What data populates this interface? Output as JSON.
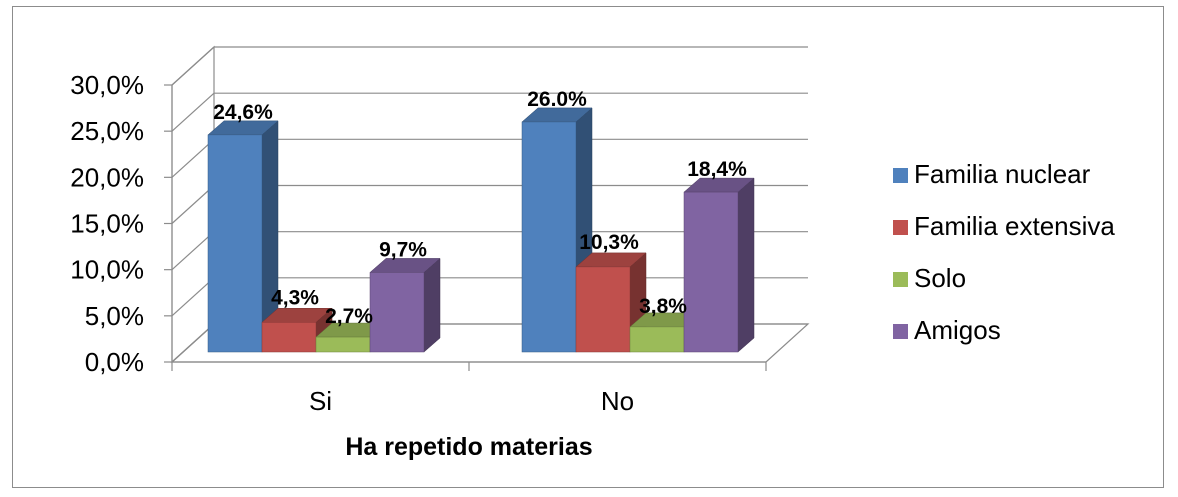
{
  "chart_data": {
    "type": "bar",
    "title": "",
    "xlabel": "Ha repetido materias",
    "ylabel": "",
    "categories": [
      "Si",
      "No"
    ],
    "ylim": [
      0,
      30
    ],
    "yticks": [
      "0,0%",
      "5,0%",
      "10,0%",
      "15,0%",
      "20,0%",
      "25,0%",
      "30,0%"
    ],
    "grid": true,
    "legend_position": "right",
    "series": [
      {
        "name": "Familia nuclear",
        "values": [
          24.6,
          26.0
        ],
        "labels": [
          "24,6%",
          "26.0%"
        ],
        "color": "#4f81bd"
      },
      {
        "name": "Familia extensiva",
        "values": [
          4.3,
          10.3
        ],
        "labels": [
          "4,3%",
          "10,3%"
        ],
        "color": "#c0504d"
      },
      {
        "name": "Solo",
        "values": [
          2.7,
          3.8
        ],
        "labels": [
          "2,7%",
          "3,8%"
        ],
        "color": "#9bbb59"
      },
      {
        "name": "Amigos",
        "values": [
          9.7,
          18.4
        ],
        "labels": [
          "9,7%",
          "18,4%"
        ],
        "color": "#8064a2"
      }
    ]
  }
}
